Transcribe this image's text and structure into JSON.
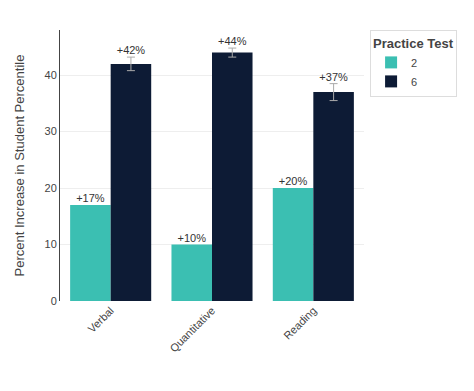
{
  "chart_data": {
    "type": "bar",
    "categories": [
      "Verbal",
      "Quantitative",
      "Reading"
    ],
    "series": [
      {
        "name": "2",
        "color": "#3bbfb2",
        "values": [
          17,
          10,
          20
        ],
        "value_labels": [
          "+17%",
          "+10%",
          "+20%"
        ]
      },
      {
        "name": "6",
        "color": "#0d1b35",
        "values": [
          42,
          44,
          37
        ],
        "errors": [
          1.2,
          0.8,
          1.5
        ],
        "value_labels": [
          "+42%",
          "+44%",
          "+37%"
        ]
      }
    ],
    "ylabel": "Percent Increase in Student Percentile",
    "legend_title": "Practice Test",
    "legend": "right",
    "ylim": [
      0,
      48
    ],
    "yticks": [
      0,
      10,
      20,
      30,
      40
    ],
    "grid": true,
    "data_labels": true
  }
}
